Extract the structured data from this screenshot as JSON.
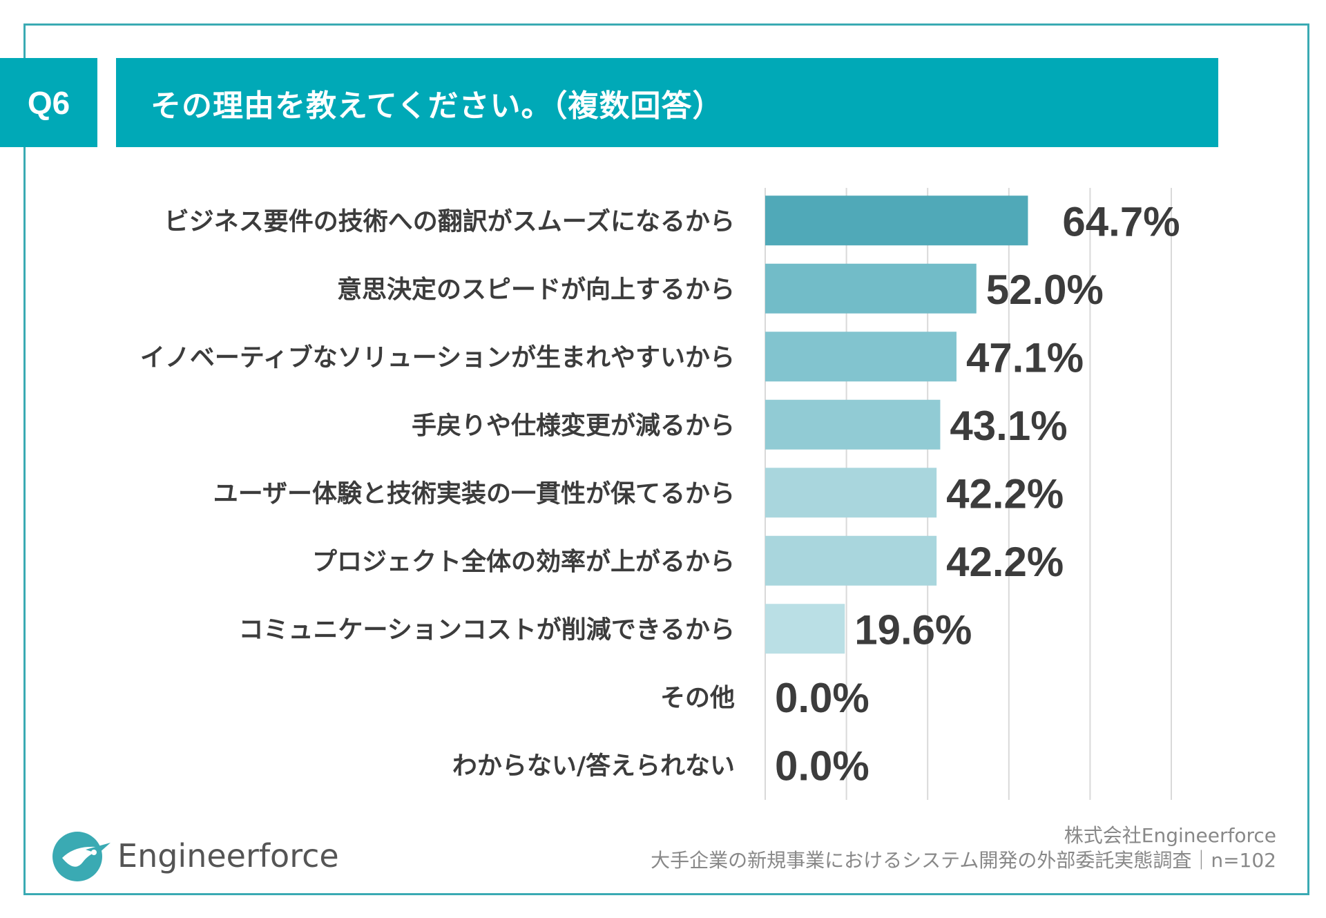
{
  "header": {
    "badge": "Q6",
    "title": "その理由を教えてください。（複数回答）"
  },
  "chart_data": {
    "type": "bar",
    "orientation": "horizontal",
    "title": "その理由を教えてください。（複数回答）",
    "categories": [
      "ビジネス要件の技術への翻訳がスムーズになるから",
      "意思決定のスピードが向上するから",
      "イノベーティブなソリューションが生まれやすいから",
      "手戻りや仕様変更が減るから",
      "ユーザー体験と技術実装の一貫性が保てるから",
      "プロジェクト全体の効率が上がるから",
      "コミュニケーションコストが削減できるから",
      "その他",
      "わからない/答えられない"
    ],
    "values": [
      64.7,
      52.0,
      47.1,
      43.1,
      42.2,
      42.2,
      19.6,
      0.0,
      0.0
    ],
    "value_labels": [
      "64.7%",
      "52.0%",
      "47.1%",
      "43.1%",
      "42.2%",
      "42.2%",
      "19.6%",
      "0.0%",
      "0.0%"
    ],
    "bar_colors": [
      "#50a9b8",
      "#72bcc8",
      "#82c4cf",
      "#91cbd4",
      "#a9d6dd",
      "#a9d6dd",
      "#badfe5",
      "#badfe5",
      "#badfe5"
    ],
    "xlim": [
      0,
      100
    ],
    "grid": true,
    "legend": "none"
  },
  "brand": {
    "logo_text": "Engineerforce",
    "accent": "#00a9b7"
  },
  "footer": {
    "company": "株式会社Engineerforce",
    "survey": "大手企業の新規事業におけるシステム開発の外部委託実態調査｜n=102"
  }
}
